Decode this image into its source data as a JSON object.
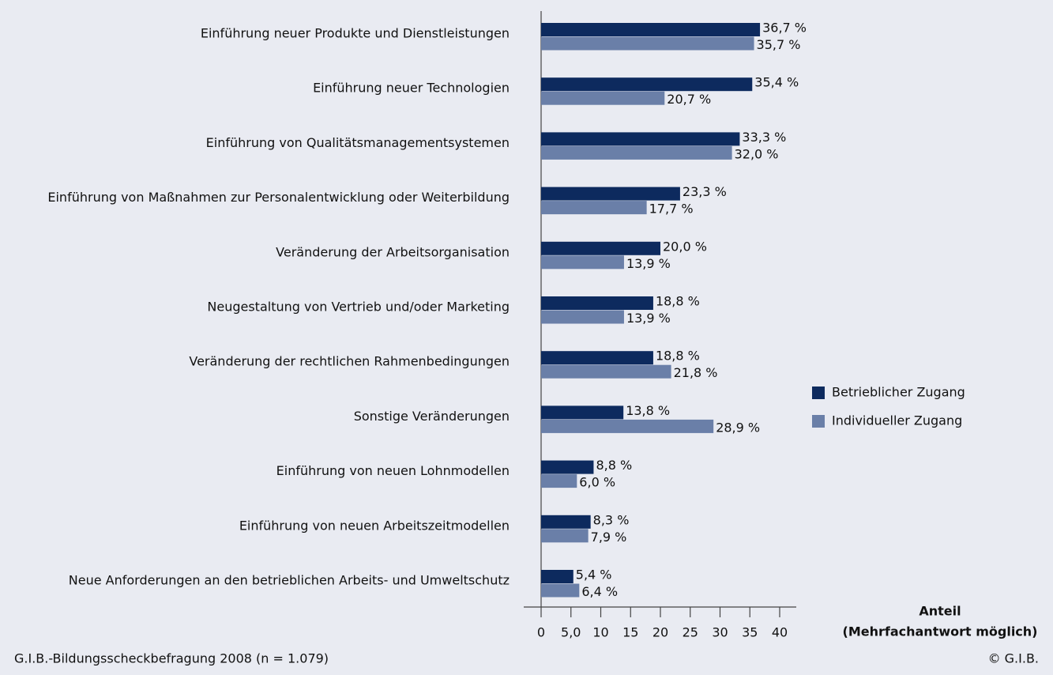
{
  "chart_data": {
    "type": "bar",
    "orientation": "horizontal",
    "categories": [
      "Einführung neuer Produkte und Dienstleistungen",
      "Einführung neuer Technologien",
      "Einführung von Qualitätsmanagementsystemen",
      "Einführung von Maßnahmen zur Personalentwicklung oder Weiterbildung",
      "Veränderung der Arbeitsorganisation",
      "Neugestaltung von Vertrieb und/oder Marketing",
      "Veränderung der rechtlichen Rahmenbedingungen",
      "Sonstige Veränderungen",
      "Einführung von neuen Lohnmodellen",
      "Einführung von neuen Arbeitszeitmodellen",
      "Neue Anforderungen an den betrieblichen Arbeits- und Umweltschutz"
    ],
    "series": [
      {
        "name": "Betrieblicher Zugang",
        "color": "#0d2a5e",
        "values": [
          36.7,
          35.4,
          33.3,
          23.3,
          20.0,
          18.8,
          18.8,
          13.8,
          8.8,
          8.3,
          5.4
        ],
        "value_labels": [
          "36,7 %",
          "35,4 %",
          "33,3 %",
          "23,3 %",
          "20,0 %",
          "18,8 %",
          "18,8 %",
          "13,8 %",
          "8,8 %",
          "8,3 %",
          "5,4 %"
        ]
      },
      {
        "name": "Individueller Zugang",
        "color": "#6a7fa8",
        "values": [
          35.7,
          20.7,
          32.0,
          17.7,
          13.9,
          13.9,
          21.8,
          28.9,
          6.0,
          7.9,
          6.4
        ],
        "value_labels": [
          "35,7 %",
          "20,7 %",
          "32,0 %",
          "17,7 %",
          "13,9 %",
          "13,9 %",
          "21,8 %",
          "28,9 %",
          "6,0 %",
          "7,9 %",
          "6,4 %"
        ]
      }
    ],
    "xlim": [
      0,
      40
    ],
    "xticks": [
      0,
      {
        "value": 5,
        "label": "5,0"
      },
      10,
      15,
      20,
      25,
      30,
      35,
      40
    ],
    "xlabel": [
      "Anteil",
      "(Mehrfachantwort möglich)"
    ],
    "source": "G.I.B.-Bildungsscheckbefragung 2008 (n = 1.079)",
    "copyright": "© G.I.B.",
    "legend": "right"
  }
}
